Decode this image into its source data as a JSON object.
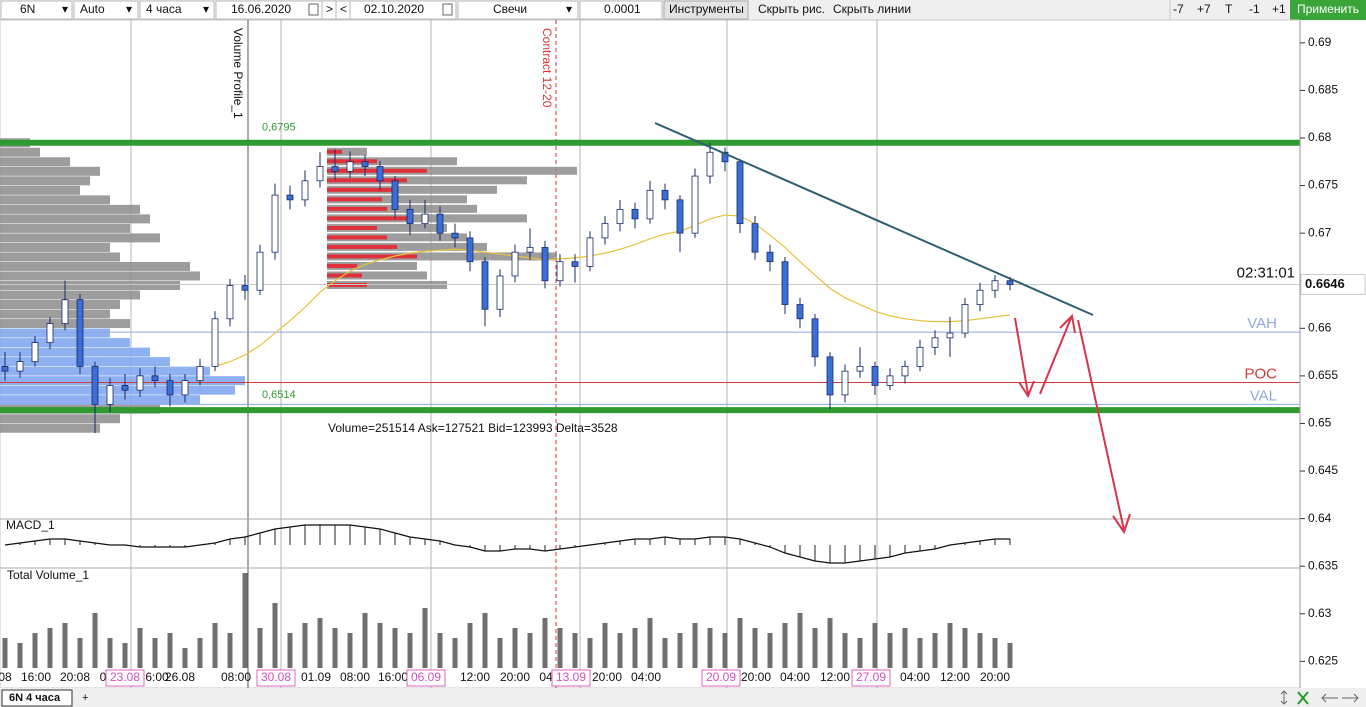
{
  "toolbar": {
    "symbol": "6N",
    "scale": "Auto",
    "timeframe": "4 часа",
    "date_from": "16.06.2020",
    "next": ">",
    "prev": "<",
    "date_to": "02.10.2020",
    "chart_style": "Свечи",
    "tick_size": "0.0001",
    "tools": "Инструменты",
    "hide_drawings": "Скрыть рис.",
    "hide_lines": "Скрыть линии",
    "minus7": "-7",
    "plus7": "+7",
    "t": "T",
    "minus1": "-1",
    "plus1": "+1",
    "apply": "Применить"
  },
  "tabs": {
    "active": "6N 4 часа",
    "add": "+"
  },
  "chart_data": {
    "type": "candlestick",
    "ylim": [
      0.6222,
      0.6924
    ],
    "yticks": [
      0.69,
      0.685,
      0.68,
      0.675,
      0.67,
      0.665,
      0.66,
      0.655,
      0.65,
      0.645,
      0.64,
      0.635,
      0.63,
      0.625
    ],
    "up_color": "#ffffff",
    "down_color": "#3b6fd6",
    "wick_color": "#1a2a6c",
    "candles": [
      [
        0.656,
        0.6575,
        0.6545,
        0.6555
      ],
      [
        0.6555,
        0.6575,
        0.6548,
        0.6565
      ],
      [
        0.6565,
        0.6592,
        0.656,
        0.6585
      ],
      [
        0.6585,
        0.6612,
        0.6578,
        0.6605
      ],
      [
        0.6605,
        0.665,
        0.6598,
        0.663
      ],
      [
        0.663,
        0.6636,
        0.6552,
        0.656
      ],
      [
        0.656,
        0.6565,
        0.649,
        0.652
      ],
      [
        0.652,
        0.6548,
        0.6512,
        0.654
      ],
      [
        0.654,
        0.6552,
        0.6525,
        0.6535
      ],
      [
        0.6535,
        0.6558,
        0.6528,
        0.655
      ],
      [
        0.655,
        0.656,
        0.6538,
        0.6545
      ],
      [
        0.6545,
        0.6552,
        0.6518,
        0.653
      ],
      [
        0.653,
        0.6552,
        0.6522,
        0.6545
      ],
      [
        0.6545,
        0.6568,
        0.654,
        0.656
      ],
      [
        0.656,
        0.6618,
        0.6555,
        0.661
      ],
      [
        0.661,
        0.6652,
        0.6602,
        0.6645
      ],
      [
        0.6645,
        0.6656,
        0.663,
        0.664
      ],
      [
        0.664,
        0.6688,
        0.6635,
        0.668
      ],
      [
        0.668,
        0.6752,
        0.6672,
        0.674
      ],
      [
        0.674,
        0.675,
        0.6725,
        0.6735
      ],
      [
        0.6735,
        0.6766,
        0.6728,
        0.6755
      ],
      [
        0.6755,
        0.6785,
        0.6748,
        0.677
      ],
      [
        0.677,
        0.6788,
        0.6756,
        0.6765
      ],
      [
        0.6765,
        0.6786,
        0.6758,
        0.6775
      ],
      [
        0.6775,
        0.6782,
        0.676,
        0.677
      ],
      [
        0.677,
        0.6776,
        0.6745,
        0.6755
      ],
      [
        0.6755,
        0.676,
        0.6715,
        0.6725
      ],
      [
        0.6725,
        0.6735,
        0.6698,
        0.671
      ],
      [
        0.671,
        0.6735,
        0.6705,
        0.672
      ],
      [
        0.672,
        0.6728,
        0.6692,
        0.67
      ],
      [
        0.67,
        0.671,
        0.6685,
        0.6695
      ],
      [
        0.6695,
        0.6702,
        0.666,
        0.667
      ],
      [
        0.667,
        0.6675,
        0.6602,
        0.662
      ],
      [
        0.662,
        0.6662,
        0.6612,
        0.6655
      ],
      [
        0.6655,
        0.6688,
        0.6648,
        0.668
      ],
      [
        0.668,
        0.6705,
        0.6672,
        0.6685
      ],
      [
        0.6685,
        0.6692,
        0.6642,
        0.665
      ],
      [
        0.665,
        0.6678,
        0.6644,
        0.667
      ],
      [
        0.667,
        0.6678,
        0.6648,
        0.6665
      ],
      [
        0.6665,
        0.6702,
        0.666,
        0.6695
      ],
      [
        0.6695,
        0.6718,
        0.6688,
        0.671
      ],
      [
        0.671,
        0.6735,
        0.6702,
        0.6725
      ],
      [
        0.6725,
        0.6732,
        0.6705,
        0.6715
      ],
      [
        0.6715,
        0.6755,
        0.671,
        0.6745
      ],
      [
        0.6745,
        0.6752,
        0.6725,
        0.6735
      ],
      [
        0.6735,
        0.674,
        0.668,
        0.67
      ],
      [
        0.67,
        0.6768,
        0.6695,
        0.676
      ],
      [
        0.676,
        0.6795,
        0.6752,
        0.6785
      ],
      [
        0.6785,
        0.679,
        0.6765,
        0.6775
      ],
      [
        0.6775,
        0.6778,
        0.67,
        0.671
      ],
      [
        0.671,
        0.6718,
        0.6672,
        0.668
      ],
      [
        0.668,
        0.6688,
        0.666,
        0.667
      ],
      [
        0.667,
        0.6675,
        0.6615,
        0.6625
      ],
      [
        0.6625,
        0.6632,
        0.66,
        0.661
      ],
      [
        0.661,
        0.6615,
        0.656,
        0.657
      ],
      [
        0.657,
        0.6575,
        0.6515,
        0.653
      ],
      [
        0.653,
        0.6562,
        0.6522,
        0.6555
      ],
      [
        0.6555,
        0.658,
        0.6548,
        0.656
      ],
      [
        0.656,
        0.6565,
        0.653,
        0.654
      ],
      [
        0.654,
        0.6558,
        0.6535,
        0.655
      ],
      [
        0.655,
        0.6566,
        0.6542,
        0.656
      ],
      [
        0.656,
        0.6588,
        0.6555,
        0.658
      ],
      [
        0.658,
        0.6598,
        0.6572,
        0.659
      ],
      [
        0.659,
        0.6612,
        0.657,
        0.6595
      ],
      [
        0.6595,
        0.6632,
        0.659,
        0.6625
      ],
      [
        0.6625,
        0.6648,
        0.6618,
        0.664
      ],
      [
        0.664,
        0.6656,
        0.6632,
        0.665
      ],
      [
        0.665,
        0.6654,
        0.664,
        0.6646
      ]
    ],
    "ma": {
      "color": "#e8c23a",
      "values": [
        null,
        null,
        null,
        null,
        null,
        null,
        null,
        null,
        null,
        null,
        null,
        null,
        null,
        null,
        0.656,
        0.6565,
        0.6572,
        0.6582,
        0.6595,
        0.6608,
        0.6622,
        0.6638,
        0.665,
        0.666,
        0.6667,
        0.6672,
        0.6676,
        0.6679,
        0.6681,
        0.6682,
        0.6683,
        0.6682,
        0.668,
        0.6678,
        0.6676,
        0.6674,
        0.6672,
        0.6673,
        0.6674,
        0.6676,
        0.6679,
        0.6683,
        0.6688,
        0.6694,
        0.6699,
        0.6702,
        0.6708,
        0.6715,
        0.6719,
        0.6718,
        0.671,
        0.6698,
        0.6685,
        0.667,
        0.6656,
        0.6642,
        0.6632,
        0.6625,
        0.6618,
        0.6613,
        0.661,
        0.6608,
        0.6607,
        0.6607,
        0.6608,
        0.661,
        0.6612,
        0.6614
      ]
    },
    "current_price": 0.6646,
    "timer": "02:31:01",
    "levels": [
      {
        "label": "0,6795",
        "value": 0.6795,
        "color": "#2f9a2f"
      },
      {
        "label": "0,6514",
        "value": 0.6514,
        "color": "#2f9a2f"
      }
    ],
    "value_area": [
      {
        "label": "VAH",
        "value": 0.6596,
        "color": "#8fa8e0"
      },
      {
        "label": "POC",
        "value": 0.6543,
        "color": "#d33a3a"
      },
      {
        "label": "VAL",
        "value": 0.652,
        "color": "#8fa8e0"
      }
    ],
    "session_profile": {
      "bins": [
        0.6495,
        0.6505,
        0.6515,
        0.6525,
        0.6535,
        0.6545,
        0.6555,
        0.6565,
        0.6575,
        0.6585,
        0.6595,
        0.6605,
        0.6615,
        0.6625,
        0.6635,
        0.6645,
        0.6655,
        0.6665,
        0.6675,
        0.6685,
        0.6695,
        0.6705,
        0.6715,
        0.6725,
        0.6735,
        0.6745,
        0.6755,
        0.6765,
        0.6775,
        0.6785,
        0.6795
      ],
      "values": [
        100,
        120,
        160,
        200,
        235,
        245,
        210,
        170,
        150,
        130,
        110,
        130,
        110,
        120,
        140,
        180,
        200,
        190,
        120,
        110,
        160,
        130,
        150,
        140,
        110,
        80,
        90,
        100,
        70,
        40,
        30
      ],
      "color": "#8c8c8c",
      "value_area_color": "#7ba3ee"
    },
    "volume_profile": {
      "title": "Volume Profile_1",
      "info": "Volume=251514  Ask=127521  Bid=123993  Delta=3528",
      "bins": [
        0.6645,
        0.6655,
        0.6665,
        0.6675,
        0.6685,
        0.6695,
        0.6705,
        0.6715,
        0.6725,
        0.6735,
        0.6745,
        0.6755,
        0.6765,
        0.6775,
        0.6785
      ],
      "values": [
        120,
        100,
        90,
        230,
        160,
        140,
        120,
        200,
        150,
        140,
        170,
        200,
        250,
        130,
        40
      ],
      "bid": [
        40,
        35,
        30,
        90,
        70,
        60,
        50,
        80,
        60,
        55,
        70,
        80,
        100,
        50,
        15
      ],
      "color": "#8c8c8c",
      "bid_color": "#e0303a"
    },
    "contract": "Contract 12-20",
    "macd": {
      "title": "MACD_1",
      "values": [
        0.0,
        0.1,
        0.2,
        0.3,
        0.3,
        0.2,
        0.1,
        0.0,
        0.0,
        -0.1,
        -0.1,
        -0.1,
        -0.1,
        0.0,
        0.1,
        0.3,
        0.4,
        0.6,
        0.8,
        0.9,
        1.0,
        1.0,
        1.0,
        1.0,
        0.9,
        0.8,
        0.6,
        0.4,
        0.3,
        0.2,
        0.0,
        -0.1,
        -0.3,
        -0.3,
        -0.2,
        -0.2,
        -0.3,
        -0.2,
        -0.1,
        0.0,
        0.1,
        0.2,
        0.3,
        0.3,
        0.4,
        0.3,
        0.3,
        0.4,
        0.4,
        0.3,
        0.1,
        -0.1,
        -0.4,
        -0.6,
        -0.8,
        -0.9,
        -0.9,
        -0.8,
        -0.7,
        -0.6,
        -0.4,
        -0.3,
        -0.2,
        0.0,
        0.1,
        0.2,
        0.3,
        0.3
      ]
    },
    "volume": {
      "title": "Total Volume_1",
      "color": "#6f6f6f",
      "values": [
        30,
        25,
        35,
        40,
        45,
        30,
        55,
        30,
        25,
        40,
        30,
        35,
        20,
        30,
        45,
        35,
        95,
        40,
        65,
        35,
        45,
        50,
        40,
        35,
        55,
        45,
        40,
        35,
        60,
        35,
        30,
        45,
        55,
        30,
        40,
        35,
        50,
        40,
        35,
        30,
        45,
        35,
        40,
        50,
        30,
        35,
        45,
        40,
        35,
        50,
        40,
        35,
        45,
        55,
        40,
        50,
        35,
        30,
        45,
        35,
        40,
        30,
        35,
        45,
        40,
        35,
        30,
        25
      ]
    },
    "x_labels": [
      "08",
      "16:00",
      "20:08",
      "0",
      "23.08",
      "6:00",
      "26.08",
      "08:00",
      "30.08",
      "01.09",
      "08:00",
      "16:00",
      "06.09",
      "12:00",
      "20:00",
      "04",
      "13.09",
      "20:00",
      "04:00",
      "20.09",
      "20:00",
      "04:00",
      "12:00",
      "27.09",
      "04:00",
      "12:00",
      "20:00"
    ]
  }
}
